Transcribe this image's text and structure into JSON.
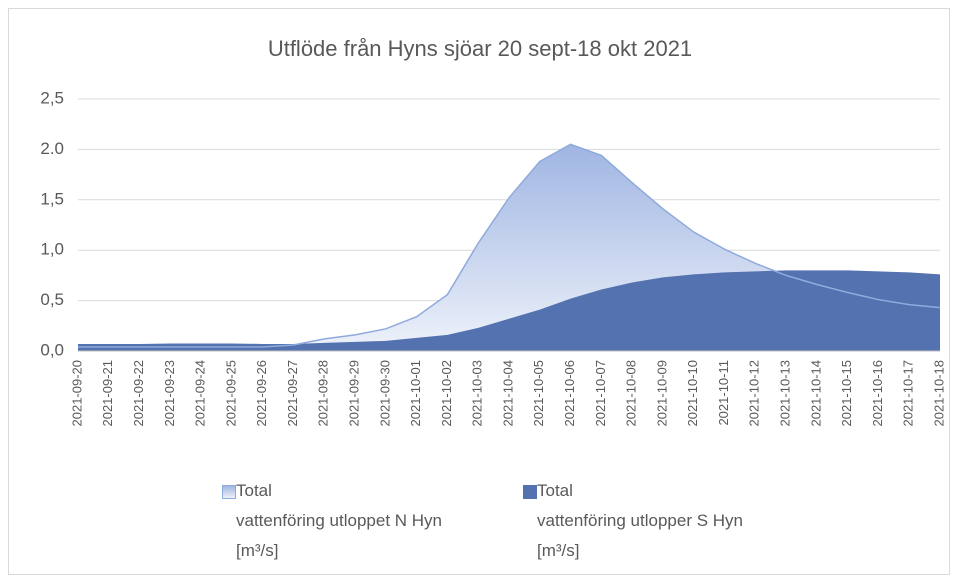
{
  "chart_data": {
    "type": "area",
    "title": "Utflöde från Hyns sjöar 20 sept-18 okt 2021",
    "categories": [
      "2021-09-20",
      "2021-09-21",
      "2021-09-22",
      "2021-09-23",
      "2021-09-24",
      "2021-09-25",
      "2021-09-26",
      "2021-09-27",
      "2021-09-28",
      "2021-09-29",
      "2021-09-30",
      "2021-10-01",
      "2021-10-02",
      "2021-10-03",
      "2021-10-04",
      "2021-10-05",
      "2021-10-06",
      "2021-10-07",
      "2021-10-08",
      "2021-10-09",
      "2021-10-10",
      "2021-10-11",
      "2021-10-12",
      "2021-10-13",
      "2021-10-14",
      "2021-10-15",
      "2021-10-16",
      "2021-10-17",
      "2021-10-18"
    ],
    "series": [
      {
        "name": "Total\nvattenföring utloppet N Hyn\n[m³/s]",
        "color": "#8faadc",
        "values": [
          0.04,
          0.04,
          0.04,
          0.04,
          0.04,
          0.04,
          0.04,
          0.06,
          0.12,
          0.16,
          0.22,
          0.34,
          0.56,
          1.07,
          1.52,
          1.88,
          2.05,
          1.94,
          1.67,
          1.41,
          1.18,
          1.01,
          0.87,
          0.75,
          0.66,
          0.58,
          0.51,
          0.46,
          0.43
        ]
      },
      {
        "name": "Total\nvattenföring utlopper S Hyn\n[m³/s]",
        "color": "#5472b0",
        "values": [
          0.07,
          0.07,
          0.07,
          0.075,
          0.075,
          0.075,
          0.07,
          0.07,
          0.08,
          0.09,
          0.1,
          0.13,
          0.16,
          0.23,
          0.32,
          0.41,
          0.52,
          0.61,
          0.68,
          0.73,
          0.76,
          0.78,
          0.79,
          0.8,
          0.8,
          0.8,
          0.79,
          0.78,
          0.76
        ]
      }
    ],
    "ylim": [
      0,
      2.5
    ],
    "yticks": [
      {
        "value": 0,
        "label": "0,0"
      },
      {
        "value": 0.5,
        "label": "0,5"
      },
      {
        "value": 1,
        "label": "1,0"
      },
      {
        "value": 1.5,
        "label": "1,5"
      },
      {
        "value": 2,
        "label": "2.0"
      },
      {
        "value": 2.5,
        "label": "2,5"
      }
    ],
    "grid": true,
    "legend": "bottom"
  }
}
